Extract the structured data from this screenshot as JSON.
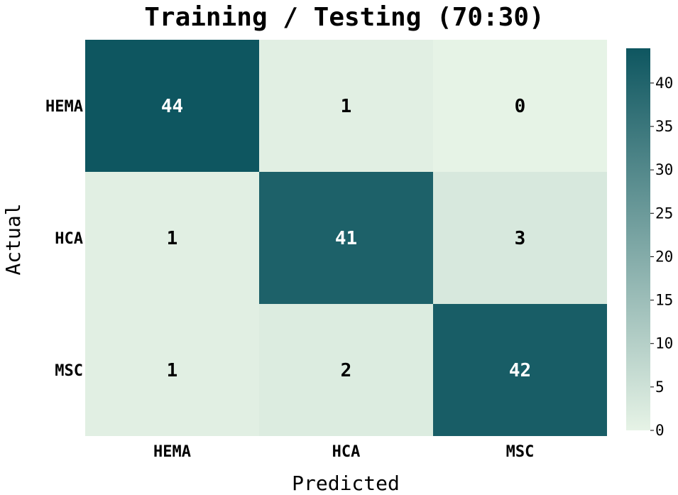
{
  "chart_data": {
    "type": "heatmap",
    "title": "Training / Testing (70:30)",
    "xlabel": "Predicted",
    "ylabel": "Actual",
    "x_categories": [
      "HEMA",
      "HCA",
      "MSC"
    ],
    "y_categories": [
      "HEMA",
      "HCA",
      "MSC"
    ],
    "values": [
      [
        44,
        1,
        0
      ],
      [
        1,
        41,
        3
      ],
      [
        1,
        2,
        42
      ]
    ],
    "colorbar": {
      "min": 0,
      "max": 44,
      "ticks": [
        0,
        5,
        10,
        15,
        20,
        25,
        30,
        35,
        40
      ],
      "low_color": "#e6f3e6",
      "high_color": "#0e5660"
    }
  }
}
